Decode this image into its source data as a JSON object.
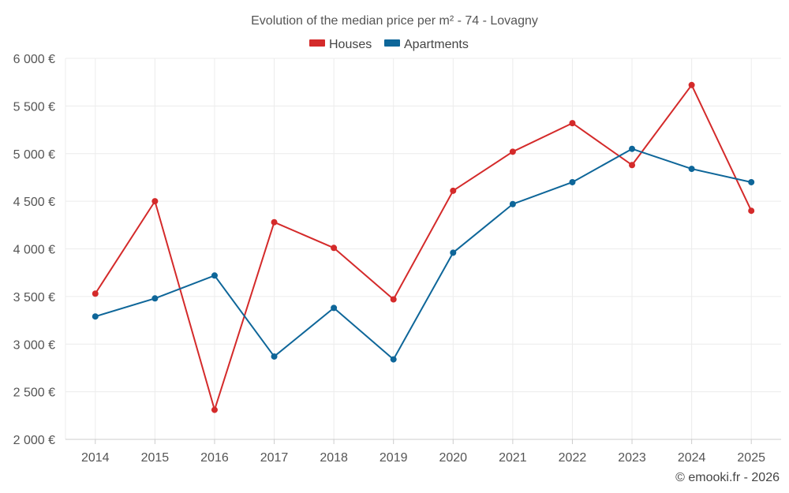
{
  "chart_data": {
    "type": "line",
    "title": "Evolution of the median price per m² - 74 - Lovagny",
    "categories": [
      "2014",
      "2015",
      "2016",
      "2017",
      "2018",
      "2019",
      "2020",
      "2021",
      "2022",
      "2023",
      "2024",
      "2025"
    ],
    "series": [
      {
        "name": "Houses",
        "color": "#d42a2a",
        "values": [
          3530,
          4500,
          2310,
          4280,
          4010,
          3470,
          4610,
          5020,
          5320,
          4880,
          5720,
          4400
        ]
      },
      {
        "name": "Apartments",
        "color": "#0e6699",
        "values": [
          3290,
          3480,
          3720,
          2870,
          3380,
          2840,
          3960,
          4470,
          4700,
          5050,
          4840,
          4700
        ]
      }
    ],
    "ylim": [
      2000,
      6000
    ],
    "yticks": [
      2000,
      2500,
      3000,
      3500,
      4000,
      4500,
      5000,
      5500,
      6000
    ],
    "ytick_labels": [
      "2 000 €",
      "2 500 €",
      "3 000 €",
      "3 500 €",
      "4 000 €",
      "4 500 €",
      "5 000 €",
      "5 500 €",
      "6 000 €"
    ],
    "xlabel": "",
    "ylabel": "",
    "legend_position": "top-center",
    "grid": true
  },
  "footer": {
    "copyright": "© emooki.fr - 2026"
  }
}
